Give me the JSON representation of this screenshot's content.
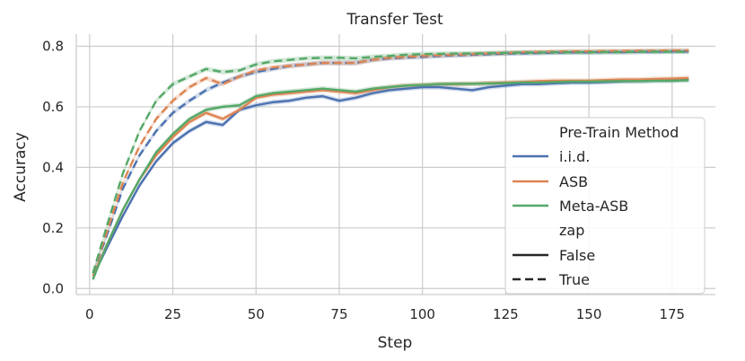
{
  "chart_data": {
    "type": "line",
    "title": "Transfer Test",
    "xlabel": "Step",
    "ylabel": "Accuracy",
    "xlim": [
      -4,
      188
    ],
    "ylim": [
      -0.02,
      0.84
    ],
    "xticks": [
      0,
      25,
      50,
      75,
      100,
      125,
      150,
      175
    ],
    "xtick_labels": [
      "0",
      "25",
      "50",
      "75",
      "100",
      "125",
      "150",
      "175"
    ],
    "yticks": [
      0.0,
      0.2,
      0.4,
      0.6,
      0.8
    ],
    "ytick_labels": [
      "0.0",
      "0.2",
      "0.4",
      "0.6",
      "0.8"
    ],
    "grid": true,
    "legend": {
      "placement": "lower-right",
      "title": "Pre-Train Method",
      "subtitle": "zap",
      "method_labels": [
        "i.i.d.",
        "ASB",
        "Meta-ASB"
      ],
      "style_labels": [
        "False",
        "True"
      ]
    },
    "colors": {
      "iid": "#4c72b0",
      "asb": "#dd8452",
      "meta_asb": "#55a868"
    },
    "x": [
      1,
      5,
      10,
      15,
      20,
      25,
      30,
      35,
      40,
      45,
      50,
      55,
      60,
      65,
      70,
      75,
      80,
      85,
      90,
      95,
      100,
      105,
      110,
      115,
      120,
      125,
      130,
      135,
      140,
      145,
      150,
      155,
      160,
      165,
      170,
      175,
      180
    ],
    "series": [
      {
        "method": "i.i.d.",
        "zap": "False",
        "color_key": "iid",
        "values": [
          0.04,
          0.13,
          0.24,
          0.34,
          0.42,
          0.48,
          0.52,
          0.55,
          0.54,
          0.59,
          0.605,
          0.615,
          0.62,
          0.63,
          0.635,
          0.62,
          0.63,
          0.645,
          0.655,
          0.66,
          0.665,
          0.665,
          0.66,
          0.655,
          0.665,
          0.67,
          0.675,
          0.675,
          0.678,
          0.68,
          0.68,
          0.682,
          0.684,
          0.685,
          0.687,
          0.688,
          0.69
        ]
      },
      {
        "method": "ASB",
        "zap": "False",
        "color_key": "asb",
        "values": [
          0.04,
          0.14,
          0.26,
          0.36,
          0.44,
          0.5,
          0.55,
          0.58,
          0.56,
          0.59,
          0.63,
          0.64,
          0.645,
          0.65,
          0.655,
          0.65,
          0.645,
          0.655,
          0.665,
          0.67,
          0.672,
          0.675,
          0.675,
          0.676,
          0.678,
          0.68,
          0.682,
          0.685,
          0.686,
          0.686,
          0.686,
          0.688,
          0.69,
          0.69,
          0.692,
          0.693,
          0.695
        ]
      },
      {
        "method": "Meta-ASB",
        "zap": "False",
        "color_key": "meta_asb",
        "values": [
          0.03,
          0.14,
          0.26,
          0.36,
          0.45,
          0.51,
          0.56,
          0.59,
          0.6,
          0.605,
          0.635,
          0.645,
          0.65,
          0.655,
          0.66,
          0.655,
          0.65,
          0.66,
          0.665,
          0.67,
          0.672,
          0.675,
          0.676,
          0.676,
          0.677,
          0.678,
          0.68,
          0.68,
          0.682,
          0.683,
          0.683,
          0.684,
          0.685,
          0.685,
          0.686,
          0.686,
          0.688
        ]
      },
      {
        "method": "i.i.d.",
        "zap": "True",
        "color_key": "iid",
        "values": [
          0.05,
          0.17,
          0.33,
          0.44,
          0.52,
          0.58,
          0.62,
          0.655,
          0.68,
          0.7,
          0.715,
          0.725,
          0.735,
          0.74,
          0.745,
          0.745,
          0.745,
          0.755,
          0.76,
          0.763,
          0.765,
          0.768,
          0.77,
          0.772,
          0.774,
          0.776,
          0.777,
          0.778,
          0.779,
          0.78,
          0.78,
          0.781,
          0.781,
          0.782,
          0.782,
          0.783,
          0.783
        ]
      },
      {
        "method": "ASB",
        "zap": "True",
        "color_key": "asb",
        "values": [
          0.05,
          0.18,
          0.35,
          0.47,
          0.56,
          0.62,
          0.665,
          0.695,
          0.675,
          0.7,
          0.72,
          0.73,
          0.735,
          0.74,
          0.745,
          0.745,
          0.745,
          0.755,
          0.762,
          0.765,
          0.768,
          0.77,
          0.772,
          0.774,
          0.776,
          0.778,
          0.78,
          0.781,
          0.782,
          0.783,
          0.783,
          0.784,
          0.784,
          0.785,
          0.785,
          0.786,
          0.786
        ]
      },
      {
        "method": "Meta-ASB",
        "zap": "True",
        "color_key": "meta_asb",
        "values": [
          0.05,
          0.2,
          0.38,
          0.52,
          0.62,
          0.675,
          0.7,
          0.725,
          0.715,
          0.72,
          0.74,
          0.75,
          0.755,
          0.76,
          0.762,
          0.762,
          0.76,
          0.765,
          0.768,
          0.772,
          0.774,
          0.775,
          0.776,
          0.776,
          0.777,
          0.778,
          0.779,
          0.779,
          0.78,
          0.78,
          0.78,
          0.781,
          0.781,
          0.782,
          0.782,
          0.782,
          0.782
        ]
      }
    ]
  }
}
